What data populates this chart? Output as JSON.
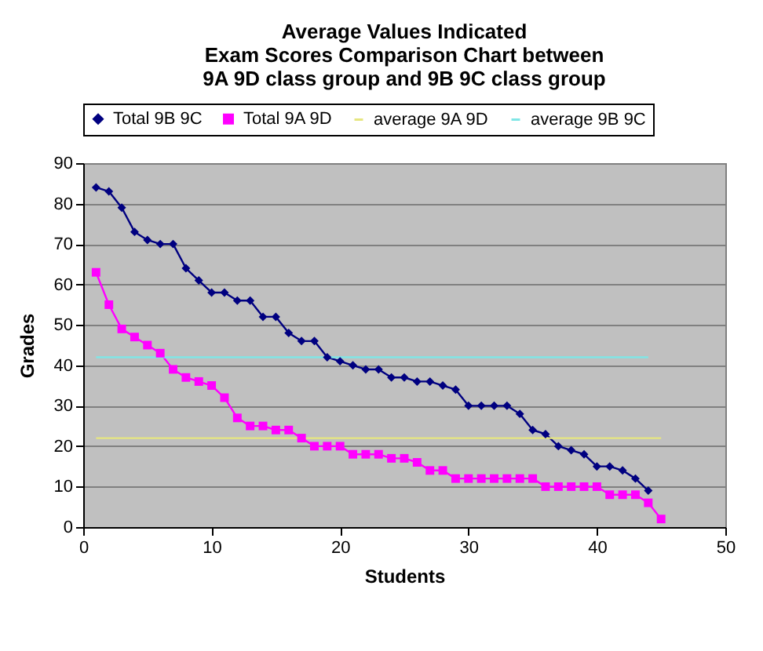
{
  "chart_data": {
    "type": "line",
    "title": [
      "Average Values Indicated",
      "Exam Scores Comparison Chart between",
      "9A 9D class group and 9B 9C class group"
    ],
    "xlabel": "Students",
    "ylabel": "Grades",
    "xlim": [
      0,
      50
    ],
    "xticks": [
      0,
      10,
      20,
      30,
      40,
      50
    ],
    "ylim": [
      0,
      90
    ],
    "yticks": [
      0,
      10,
      20,
      30,
      40,
      50,
      60,
      70,
      80,
      90
    ],
    "grid": "y",
    "legend": "top",
    "series": [
      {
        "name": "Total 9B 9C",
        "color": "#000080",
        "marker": "diamond",
        "x": [
          1,
          2,
          3,
          4,
          5,
          6,
          7,
          8,
          9,
          10,
          11,
          12,
          13,
          14,
          15,
          16,
          17,
          18,
          19,
          20,
          21,
          22,
          23,
          24,
          25,
          26,
          27,
          28,
          29,
          30,
          31,
          32,
          33,
          34,
          35,
          36,
          37,
          38,
          39,
          40,
          41,
          42,
          43,
          44
        ],
        "values": [
          84,
          83,
          79,
          73,
          71,
          70,
          70,
          64,
          61,
          58,
          58,
          56,
          56,
          52,
          52,
          48,
          46,
          46,
          42,
          41,
          40,
          39,
          39,
          37,
          37,
          36,
          36,
          35,
          34,
          30,
          30,
          30,
          30,
          28,
          24,
          23,
          20,
          19,
          18,
          15,
          15,
          14,
          12,
          9
        ]
      },
      {
        "name": "Total 9A 9D",
        "color": "#ff00ff",
        "marker": "square",
        "x": [
          1,
          2,
          3,
          4,
          5,
          6,
          7,
          8,
          9,
          10,
          11,
          12,
          13,
          14,
          15,
          16,
          17,
          18,
          19,
          20,
          21,
          22,
          23,
          24,
          25,
          26,
          27,
          28,
          29,
          30,
          31,
          32,
          33,
          34,
          35,
          36,
          37,
          38,
          39,
          40,
          41,
          42,
          43,
          44,
          45
        ],
        "values": [
          63,
          55,
          49,
          47,
          45,
          43,
          39,
          37,
          36,
          35,
          32,
          27,
          25,
          25,
          24,
          24,
          22,
          20,
          20,
          20,
          18,
          18,
          18,
          17,
          17,
          16,
          14,
          14,
          12,
          12,
          12,
          12,
          12,
          12,
          12,
          10,
          10,
          10,
          10,
          10,
          8,
          8,
          8,
          6,
          2
        ]
      },
      {
        "name": "average 9A 9D",
        "color": "#e6e680",
        "marker": "none",
        "x": [
          1,
          45
        ],
        "values": [
          22,
          22
        ]
      },
      {
        "name": "average 9B 9C",
        "color": "#80e6e6",
        "marker": "none",
        "x": [
          1,
          44
        ],
        "values": [
          42,
          42
        ]
      }
    ]
  }
}
